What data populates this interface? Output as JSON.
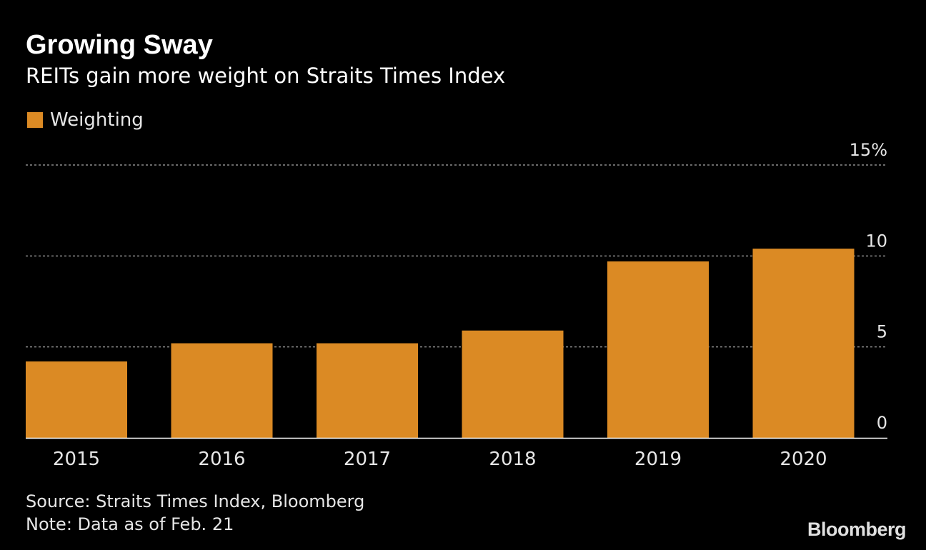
{
  "chart_data": {
    "type": "bar",
    "title": "Growing Sway",
    "subtitle": "REITs gain more weight on Straits Times Index",
    "categories": [
      "2015",
      "2016",
      "2017",
      "2018",
      "2019",
      "2020"
    ],
    "series": [
      {
        "name": "Weighting",
        "values": [
          4.2,
          5.2,
          5.2,
          5.9,
          9.7,
          10.4
        ]
      }
    ],
    "y_ticks": [
      {
        "value": 15,
        "label": "15%"
      },
      {
        "value": 10,
        "label": "10"
      },
      {
        "value": 5,
        "label": "5"
      },
      {
        "value": 0,
        "label": "0"
      }
    ],
    "ylim": [
      0,
      15
    ],
    "xlabel": "",
    "ylabel": "",
    "grid": true,
    "legend_position": "top-left",
    "colors": {
      "bar": "#db8a24",
      "background": "#000000",
      "grid": "#8c8c8c",
      "axis": "#ffffff"
    }
  },
  "footer": {
    "source": "Source: Straits Times Index, Bloomberg",
    "note": "Note: Data as of Feb. 21"
  },
  "logo_text": "Bloomberg"
}
